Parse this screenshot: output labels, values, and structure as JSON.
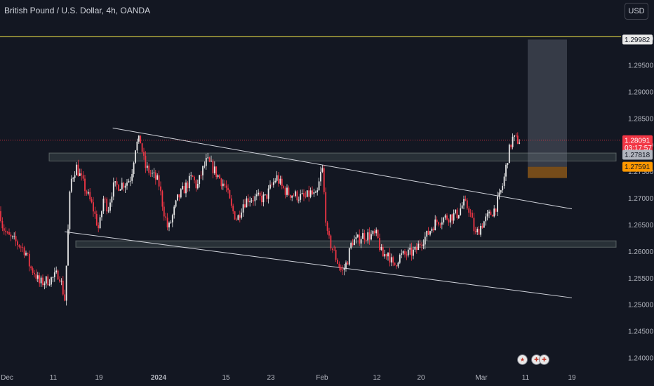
{
  "header": {
    "title": "British Pound / U.S. Dollar, 4h, OANDA",
    "currency_button": "USD"
  },
  "chart_data": {
    "type": "candlestick",
    "symbol": "GBPUSD",
    "interval": "4h",
    "y_ticks": [
      "1.30000",
      "1.29500",
      "1.29000",
      "1.28500",
      "1.28000",
      "1.27500",
      "1.27000",
      "1.26500",
      "1.26000",
      "1.25500",
      "1.25000",
      "1.24500",
      "1.24000"
    ],
    "x_ticks": [
      "Dec",
      "11",
      "19",
      "2024",
      "15",
      "23",
      "Feb",
      "12",
      "20",
      "Mar",
      "11",
      "19"
    ],
    "price_tags": [
      {
        "text": "1.29982",
        "price": 1.29982,
        "bg": "#e8e8e8",
        "color": "#131722"
      },
      {
        "text": "1.28091",
        "price": 1.28091,
        "bg": "#f23645",
        "color": "#ffffff"
      },
      {
        "text": "03:17:57",
        "price": 1.2795,
        "bg": "#f23645",
        "color": "#ffffff"
      },
      {
        "text": "1.27818",
        "price": 1.27818,
        "bg": "#b2b5be",
        "color": "#131722"
      },
      {
        "text": "1.27591",
        "price": 1.27591,
        "bg": "#ff9800",
        "color": "#131722"
      }
    ],
    "current_price": 1.28091,
    "horizontal_line": {
      "price": 1.30035,
      "color": "#f5e94a"
    },
    "zones": [
      {
        "name": "resistance-zone",
        "top": 1.2785,
        "bottom": 1.277
      },
      {
        "name": "support-zone",
        "top": 1.262,
        "bottom": 1.2608
      }
    ],
    "trendlines": [
      {
        "name": "upper-trendline",
        "from": [
          "2023-12-22",
          1.2832
        ],
        "to": [
          "2024-03-19",
          1.268
        ]
      },
      {
        "name": "lower-trendline",
        "from": [
          "2023-12-13",
          1.2637
        ],
        "to": [
          "2024-03-19",
          1.2513
        ]
      }
    ],
    "position": {
      "entry": 1.27591,
      "target": 1.29982,
      "stop": 1.2769,
      "from": "2024-03-08",
      "to": "2024-03-13"
    },
    "price_path": [
      [
        "2023-11-29",
        1.27
      ],
      [
        "2023-11-30",
        1.265
      ],
      [
        "2023-12-01",
        1.263
      ],
      [
        "2023-12-04",
        1.261
      ],
      [
        "2023-12-05",
        1.26
      ],
      [
        "2023-12-06",
        1.257
      ],
      [
        "2023-12-07",
        1.256
      ],
      [
        "2023-12-08",
        1.254
      ],
      [
        "2023-12-11",
        1.255
      ],
      [
        "2023-12-12",
        1.256
      ],
      [
        "2023-12-13",
        1.251
      ],
      [
        "2023-12-14",
        1.273
      ],
      [
        "2023-12-15",
        1.276
      ],
      [
        "2023-12-18",
        1.268
      ],
      [
        "2023-12-19",
        1.264
      ],
      [
        "2023-12-20",
        1.27
      ],
      [
        "2023-12-21",
        1.268
      ],
      [
        "2023-12-22",
        1.272
      ],
      [
        "2023-12-25",
        1.273
      ],
      [
        "2023-12-26",
        1.274
      ],
      [
        "2023-12-27",
        1.28
      ],
      [
        "2023-12-28",
        1.281
      ],
      [
        "2023-12-29",
        1.276
      ],
      [
        "2024-01-01",
        1.273
      ],
      [
        "2024-01-02",
        1.268
      ],
      [
        "2024-01-03",
        1.264
      ],
      [
        "2024-01-04",
        1.267
      ],
      [
        "2024-01-05",
        1.27
      ],
      [
        "2024-01-08",
        1.274
      ],
      [
        "2024-01-09",
        1.272
      ],
      [
        "2024-01-10",
        1.275
      ],
      [
        "2024-01-11",
        1.277
      ],
      [
        "2024-01-12",
        1.276
      ],
      [
        "2024-01-15",
        1.272
      ],
      [
        "2024-01-16",
        1.268
      ],
      [
        "2024-01-17",
        1.266
      ],
      [
        "2024-01-18",
        1.269
      ],
      [
        "2024-01-19",
        1.27
      ],
      [
        "2024-01-22",
        1.27
      ],
      [
        "2024-01-23",
        1.272
      ],
      [
        "2024-01-24",
        1.274
      ],
      [
        "2024-01-25",
        1.272
      ],
      [
        "2024-01-26",
        1.271
      ],
      [
        "2024-01-29",
        1.27
      ],
      [
        "2024-01-30",
        1.271
      ],
      [
        "2024-01-31",
        1.27
      ],
      [
        "2024-02-01",
        1.276
      ],
      [
        "2024-02-02",
        1.263
      ],
      [
        "2024-02-05",
        1.256
      ],
      [
        "2024-02-06",
        1.258
      ],
      [
        "2024-02-07",
        1.262
      ],
      [
        "2024-02-08",
        1.262
      ],
      [
        "2024-02-09",
        1.263
      ],
      [
        "2024-02-12",
        1.263
      ],
      [
        "2024-02-13",
        1.259
      ],
      [
        "2024-02-14",
        1.26
      ],
      [
        "2024-02-15",
        1.257
      ],
      [
        "2024-02-16",
        1.259
      ],
      [
        "2024-02-19",
        1.26
      ],
      [
        "2024-02-20",
        1.262
      ],
      [
        "2024-02-21",
        1.263
      ],
      [
        "2024-02-22",
        1.265
      ],
      [
        "2024-02-23",
        1.266
      ],
      [
        "2024-02-26",
        1.267
      ],
      [
        "2024-02-27",
        1.269
      ],
      [
        "2024-02-28",
        1.268
      ],
      [
        "2024-02-29",
        1.263
      ],
      [
        "2024-03-01",
        1.265
      ],
      [
        "2024-03-04",
        1.268
      ],
      [
        "2024-03-05",
        1.27
      ],
      [
        "2024-03-06",
        1.273
      ],
      [
        "2024-03-07",
        1.278
      ],
      [
        "2024-03-08",
        1.2812
      ],
      [
        "2024-03-09",
        1.2809
      ]
    ]
  }
}
